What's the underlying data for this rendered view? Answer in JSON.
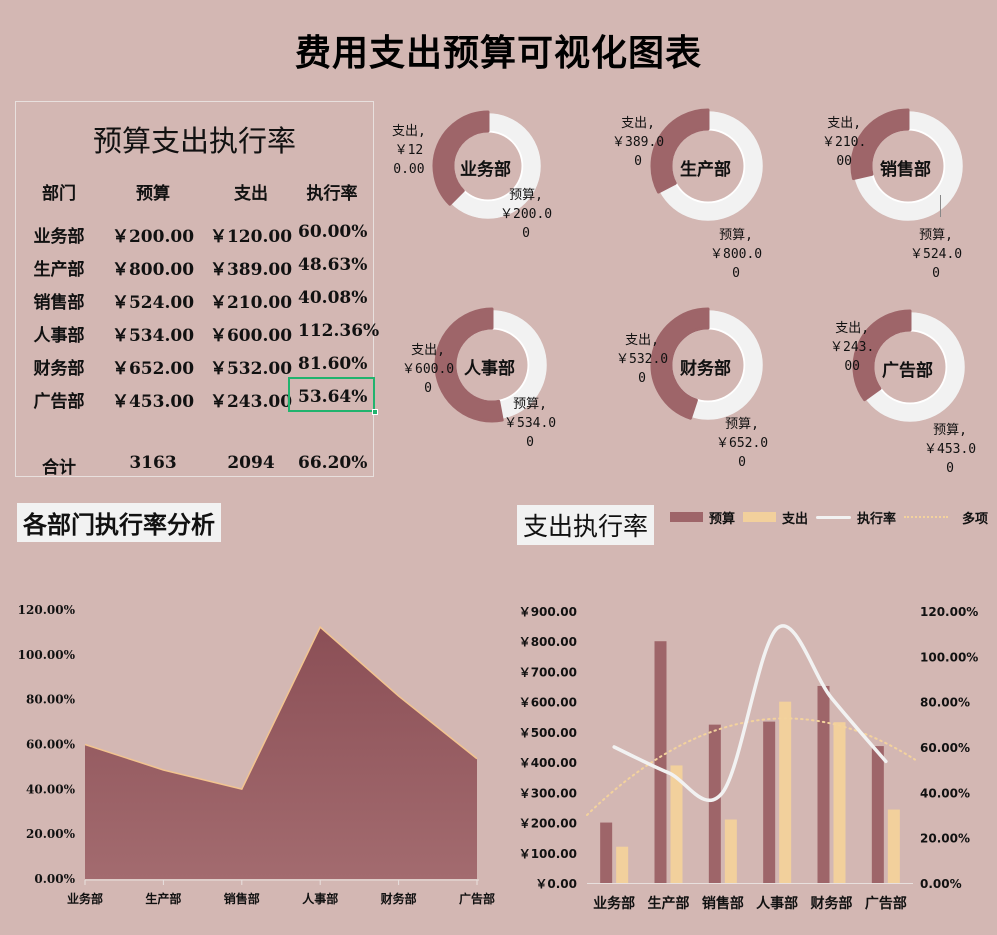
{
  "page": {
    "title": "费用支出预算可视化图表"
  },
  "table": {
    "title": "预算支出执行率",
    "headers": [
      "部门",
      "预算",
      "支出",
      "执行率"
    ],
    "rows": [
      [
        "业务部",
        "￥200.00",
        "￥120.00",
        "60.00%"
      ],
      [
        "生产部",
        "￥800.00",
        "￥389.00",
        "48.63%"
      ],
      [
        "销售部",
        "￥524.00",
        "￥210.00",
        "40.08%"
      ],
      [
        "人事部",
        "￥534.00",
        "￥600.00",
        "112.36%"
      ],
      [
        "财务部",
        "￥652.00",
        "￥532.00",
        "81.60%"
      ],
      [
        "广告部",
        "￥453.00",
        "￥243.00",
        "53.64%"
      ]
    ],
    "total": [
      "合计",
      "3163",
      "2094",
      "66.20%"
    ],
    "selected_cell": "53.64%"
  },
  "donuts": [
    {
      "dept": "业务部",
      "spend_label": [
        "支出,",
        "￥12",
        "0.00"
      ],
      "budget_label": [
        "预算,",
        "￥200.0",
        "0"
      ],
      "spend": 120,
      "budget": 200
    },
    {
      "dept": "生产部",
      "spend_label": [
        "支出,",
        "￥389.0",
        "0"
      ],
      "budget_label": [
        "预算,",
        "￥800.0",
        "0"
      ],
      "spend": 389,
      "budget": 800
    },
    {
      "dept": "销售部",
      "spend_label": [
        "支出,",
        "￥210.",
        "00"
      ],
      "budget_label": [
        "预算,",
        "￥524.0",
        "0"
      ],
      "spend": 210,
      "budget": 524
    },
    {
      "dept": "人事部",
      "spend_label": [
        "支出,",
        "￥600.0",
        "0"
      ],
      "budget_label": [
        "预算,",
        "￥534.0",
        "0"
      ],
      "spend": 600,
      "budget": 534
    },
    {
      "dept": "财务部",
      "spend_label": [
        "支出,",
        "￥532.0",
        "0"
      ],
      "budget_label": [
        "预算,",
        "￥652.0",
        "0"
      ],
      "spend": 532,
      "budget": 652
    },
    {
      "dept": "广告部",
      "spend_label": [
        "支出,",
        "￥243.",
        "00"
      ],
      "budget_label": [
        "预算,",
        "￥453.0",
        "0"
      ],
      "spend": 243,
      "budget": 453
    }
  ],
  "area_chart": {
    "title": "各部门执行率分析"
  },
  "combo_chart": {
    "title": "支出执行率",
    "legend": [
      "预算",
      "支出",
      "执行率",
      "多项"
    ]
  },
  "colors": {
    "background": "#d3b7b3",
    "budget": "#9e6569",
    "spend": "#f2d09c",
    "rate_line": "#f2f2f2",
    "trend": "#f3d29d",
    "donut_track": "#f2f2f2",
    "selection": "#21b36e"
  },
  "chart_data": [
    {
      "type": "pie",
      "title": "各部门预算与支出 (环形图)",
      "categories": [
        "业务部",
        "生产部",
        "销售部",
        "人事部",
        "财务部",
        "广告部"
      ],
      "series": [
        {
          "name": "支出",
          "values": [
            120,
            389,
            210,
            600,
            532,
            243
          ]
        },
        {
          "name": "预算",
          "values": [
            200,
            800,
            524,
            534,
            652,
            453
          ]
        }
      ]
    },
    {
      "type": "area",
      "title": "各部门执行率分析",
      "categories": [
        "业务部",
        "生产部",
        "销售部",
        "人事部",
        "财务部",
        "广告部"
      ],
      "values": [
        60.0,
        48.63,
        40.08,
        112.36,
        81.6,
        53.64
      ],
      "xlabel": "",
      "ylabel": "",
      "ylim": [
        0,
        120
      ],
      "yticks": [
        "0.00%",
        "20.00%",
        "40.00%",
        "60.00%",
        "80.00%",
        "100.00%",
        "120.00%"
      ],
      "grid": false
    },
    {
      "type": "bar",
      "title": "支出执行率",
      "categories": [
        "业务部",
        "生产部",
        "销售部",
        "人事部",
        "财务部",
        "广告部"
      ],
      "series": [
        {
          "name": "预算",
          "type": "bar",
          "axis": "left",
          "values": [
            200,
            800,
            524,
            534,
            652,
            453
          ]
        },
        {
          "name": "支出",
          "type": "bar",
          "axis": "left",
          "values": [
            120,
            389,
            210,
            600,
            532,
            243
          ]
        },
        {
          "name": "执行率",
          "type": "line",
          "axis": "right",
          "values": [
            60.0,
            48.63,
            40.08,
            112.36,
            81.6,
            53.64
          ]
        },
        {
          "name": "多项",
          "type": "line-dotted-trend",
          "axis": "right"
        }
      ],
      "ylim_left": [
        0,
        900
      ],
      "yticks_left": [
        "￥0.00",
        "￥100.00",
        "￥200.00",
        "￥300.00",
        "￥400.00",
        "￥500.00",
        "￥600.00",
        "￥700.00",
        "￥800.00",
        "￥900.00"
      ],
      "ylim_right": [
        0,
        120
      ],
      "yticks_right": [
        "0.00%",
        "20.00%",
        "40.00%",
        "60.00%",
        "80.00%",
        "100.00%",
        "120.00%"
      ],
      "legend_position": "top"
    }
  ]
}
